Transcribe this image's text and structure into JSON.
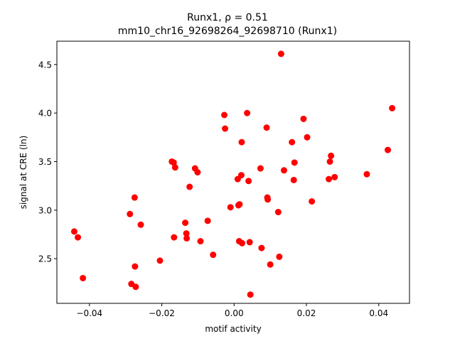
{
  "chart_data": {
    "type": "scatter",
    "title_line1": "Runx1, ρ = 0.51",
    "title_line2": "mm10_chr16_92698264_92698710 (Runx1)",
    "xlabel": "motif activity",
    "ylabel": "signal at CRE (ln)",
    "xlim": [
      -0.049,
      0.0485
    ],
    "ylim": [
      2.04,
      4.74
    ],
    "xticks": [
      -0.04,
      -0.02,
      0.0,
      0.02,
      0.04
    ],
    "xtick_labels": [
      "−0.04",
      "−0.02",
      "0.00",
      "0.02",
      "0.04"
    ],
    "yticks": [
      2.5,
      3.0,
      3.5,
      4.0,
      4.5
    ],
    "ytick_labels": [
      "2.5",
      "3.0",
      "3.5",
      "4.0",
      "4.5"
    ],
    "grid": false,
    "marker_color": "#ff0000",
    "points": [
      {
        "x": -0.0442,
        "y": 2.78
      },
      {
        "x": -0.0432,
        "y": 2.72
      },
      {
        "x": -0.0418,
        "y": 2.3
      },
      {
        "x": -0.0288,
        "y": 2.96
      },
      {
        "x": -0.0284,
        "y": 2.24
      },
      {
        "x": -0.0275,
        "y": 3.13
      },
      {
        "x": -0.0274,
        "y": 2.42
      },
      {
        "x": -0.0272,
        "y": 2.21
      },
      {
        "x": -0.0258,
        "y": 2.85
      },
      {
        "x": -0.0205,
        "y": 2.48
      },
      {
        "x": -0.0172,
        "y": 3.5
      },
      {
        "x": -0.0167,
        "y": 3.49
      },
      {
        "x": -0.0166,
        "y": 2.72
      },
      {
        "x": -0.0163,
        "y": 3.44
      },
      {
        "x": -0.0135,
        "y": 2.87
      },
      {
        "x": -0.0132,
        "y": 2.76
      },
      {
        "x": -0.0131,
        "y": 2.71
      },
      {
        "x": -0.0123,
        "y": 3.24
      },
      {
        "x": -0.0108,
        "y": 3.43
      },
      {
        "x": -0.0101,
        "y": 3.39
      },
      {
        "x": -0.0093,
        "y": 2.68
      },
      {
        "x": -0.0073,
        "y": 2.89
      },
      {
        "x": -0.0058,
        "y": 2.54
      },
      {
        "x": -0.0027,
        "y": 3.98
      },
      {
        "x": -0.0025,
        "y": 3.84
      },
      {
        "x": -0.001,
        "y": 3.03
      },
      {
        "x": 0.001,
        "y": 3.32
      },
      {
        "x": 0.0012,
        "y": 3.05
      },
      {
        "x": 0.0014,
        "y": 2.68
      },
      {
        "x": 0.0015,
        "y": 3.06
      },
      {
        "x": 0.002,
        "y": 3.36
      },
      {
        "x": 0.0021,
        "y": 3.7
      },
      {
        "x": 0.0022,
        "y": 2.66
      },
      {
        "x": 0.0036,
        "y": 4.0
      },
      {
        "x": 0.004,
        "y": 3.3
      },
      {
        "x": 0.0043,
        "y": 2.67
      },
      {
        "x": 0.0045,
        "y": 2.13
      },
      {
        "x": 0.0073,
        "y": 3.43
      },
      {
        "x": 0.0076,
        "y": 2.61
      },
      {
        "x": 0.009,
        "y": 3.85
      },
      {
        "x": 0.0092,
        "y": 3.13
      },
      {
        "x": 0.0093,
        "y": 3.11
      },
      {
        "x": 0.01,
        "y": 2.44
      },
      {
        "x": 0.0122,
        "y": 2.98
      },
      {
        "x": 0.0125,
        "y": 2.52
      },
      {
        "x": 0.013,
        "y": 4.61
      },
      {
        "x": 0.0138,
        "y": 3.41
      },
      {
        "x": 0.016,
        "y": 3.7
      },
      {
        "x": 0.0165,
        "y": 3.31
      },
      {
        "x": 0.0167,
        "y": 3.49
      },
      {
        "x": 0.0192,
        "y": 3.94
      },
      {
        "x": 0.0202,
        "y": 3.75
      },
      {
        "x": 0.0215,
        "y": 3.09
      },
      {
        "x": 0.0262,
        "y": 3.32
      },
      {
        "x": 0.0265,
        "y": 3.5
      },
      {
        "x": 0.0268,
        "y": 3.56
      },
      {
        "x": 0.0278,
        "y": 3.34
      },
      {
        "x": 0.0367,
        "y": 3.37
      },
      {
        "x": 0.0425,
        "y": 3.62
      },
      {
        "x": 0.0437,
        "y": 4.05
      }
    ]
  }
}
